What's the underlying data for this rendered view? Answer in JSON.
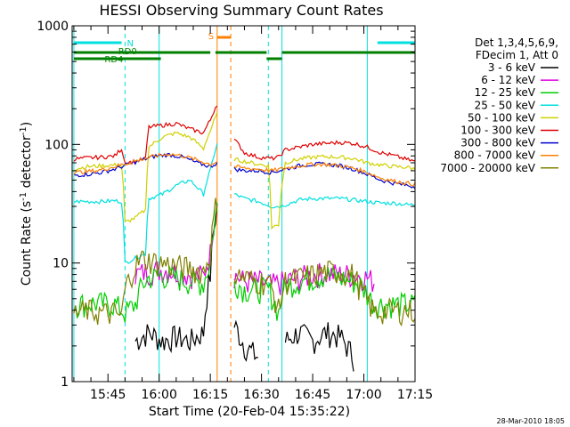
{
  "chart_data": {
    "type": "line",
    "title": "HESSI Observing Summary Count Rates",
    "xlabel": "Start Time (20-Feb-04 15:35:22)",
    "ylabel_main": "Count Rate (s",
    "ylabel_sup1": "-1",
    "ylabel_mid": " detector",
    "ylabel_sup2": "-1",
    "ylabel_end": ")",
    "y_scale": "log",
    "ylim": [
      1,
      1000
    ],
    "xlim_minutes": [
      -0.5,
      100
    ],
    "x_ticks": [
      {
        "label": "15:45",
        "t": 10
      },
      {
        "label": "16:00",
        "t": 25
      },
      {
        "label": "16:15",
        "t": 40
      },
      {
        "label": "16:30",
        "t": 55
      },
      {
        "label": "16:45",
        "t": 70
      },
      {
        "label": "17:00",
        "t": 85
      },
      {
        "label": "17:15",
        "t": 100
      }
    ],
    "y_ticks": [
      {
        "label": "1",
        "v": 1
      },
      {
        "label": "10",
        "v": 10
      },
      {
        "label": "100",
        "v": 100
      },
      {
        "label": "1000",
        "v": 1000
      }
    ],
    "legend": {
      "header": [
        "Det 1,3,4,5,6,9,",
        "FDecim 1, Att 0"
      ],
      "placement": "right"
    },
    "series": [
      {
        "name": "3 - 6 keV",
        "color": "#000000",
        "t": [
          0,
          4,
          8,
          14,
          18,
          22,
          26,
          30,
          34,
          38,
          40,
          42,
          44,
          45.5,
          47,
          50,
          54,
          58,
          62,
          66,
          70,
          74,
          78,
          82,
          86,
          90,
          94,
          98,
          100
        ],
        "y": [
          null,
          null,
          null,
          null,
          2.2,
          2.6,
          2.2,
          2.4,
          2.2,
          2.6,
          8,
          30,
          null,
          null,
          3,
          2,
          1.6,
          null,
          2.2,
          2.6,
          2.2,
          2.6,
          2.4,
          1.6,
          null,
          null,
          null,
          null,
          null
        ]
      },
      {
        "name": "6 - 12 keV",
        "color": "#e000e0",
        "t": [
          18,
          22,
          26,
          30,
          34,
          38,
          40,
          42,
          44,
          45.5,
          47,
          50,
          54,
          58,
          62,
          66,
          70,
          74,
          78,
          82,
          86,
          88
        ],
        "y": [
          8.0,
          8.5,
          8.8,
          8.5,
          8.0,
          7.8,
          12,
          35,
          null,
          null,
          8,
          7.0,
          7.0,
          6.5,
          7.0,
          7.5,
          8,
          8.2,
          8.0,
          8.0,
          7.5,
          7.0
        ]
      },
      {
        "name": "12 - 25 keV",
        "color": "#00d000",
        "t": [
          0,
          6,
          12,
          15,
          18,
          20,
          22,
          26,
          30,
          34,
          38,
          40,
          42,
          44,
          45.5,
          47,
          50,
          54,
          57,
          60,
          62,
          66,
          70,
          74,
          78,
          82,
          84,
          88,
          92,
          96,
          100
        ],
        "y": [
          4.5,
          4.6,
          4.5,
          3.8,
          4.5,
          6.5,
          7.5,
          7.8,
          7.5,
          7.0,
          6.8,
          10,
          30,
          null,
          null,
          7,
          6.0,
          6.0,
          6.0,
          3.8,
          6.5,
          7.0,
          7.5,
          8.0,
          7.5,
          7.0,
          6.5,
          4.5,
          4.5,
          4.5,
          4.5
        ]
      },
      {
        "name": "25 - 50 keV",
        "color": "#00e0e0",
        "t": [
          0,
          4,
          8,
          12,
          14,
          15,
          18,
          21,
          22,
          26,
          30,
          34,
          38,
          40,
          42,
          44,
          45.5,
          47,
          50,
          54,
          58,
          60,
          62,
          66,
          70,
          74,
          78,
          82,
          86,
          90,
          94,
          98,
          100
        ],
        "y": [
          33,
          33,
          33,
          33.5,
          33,
          10,
          11,
          12,
          35,
          38,
          45,
          50,
          38,
          60,
          100,
          null,
          null,
          38,
          35,
          33,
          30,
          30,
          31,
          34,
          35,
          35,
          35,
          34,
          33,
          32,
          32,
          31,
          31
        ]
      },
      {
        "name": "50 - 100 keV",
        "color": "#d0d000",
        "t": [
          0,
          4,
          8,
          12,
          14,
          15,
          18,
          21,
          22,
          26,
          30,
          34,
          38,
          40,
          42,
          44,
          45.5,
          47,
          50,
          54,
          57,
          58,
          60,
          62,
          66,
          70,
          74,
          78,
          82,
          86,
          90,
          94,
          98,
          100
        ],
        "y": [
          62,
          65,
          66,
          67,
          66,
          22,
          24,
          28,
          95,
          115,
          125,
          115,
          92,
          130,
          180,
          null,
          null,
          75,
          72,
          68,
          66,
          20,
          21,
          70,
          75,
          78,
          79,
          78,
          76,
          70,
          67,
          65,
          64,
          62
        ]
      },
      {
        "name": "100 - 300 keV",
        "color": "#e00000",
        "t": [
          0,
          4,
          8,
          12,
          14,
          15,
          18,
          21,
          22,
          26,
          30,
          34,
          38,
          40,
          42,
          44,
          45.5,
          47,
          50,
          54,
          58,
          60,
          62,
          66,
          70,
          74,
          78,
          82,
          86,
          90,
          94,
          98,
          100
        ],
        "y": [
          75,
          77,
          78,
          80,
          92,
          70,
          72,
          76,
          140,
          145,
          150,
          135,
          125,
          160,
          220,
          null,
          null,
          110,
          85,
          78,
          76,
          78,
          90,
          95,
          100,
          102,
          104,
          102,
          95,
          85,
          80,
          74,
          72
        ]
      },
      {
        "name": "300 - 800 keV",
        "color": "#0000d0",
        "t": [
          0,
          4,
          8,
          12,
          16,
          20,
          24,
          28,
          32,
          36,
          40,
          42,
          44,
          45.5,
          47,
          50,
          54,
          58,
          62,
          66,
          70,
          74,
          78,
          82,
          86,
          90,
          94,
          98,
          100
        ],
        "y": [
          55,
          56,
          58,
          62,
          68,
          74,
          80,
          82,
          78,
          70,
          65,
          70,
          null,
          null,
          62,
          60,
          60,
          58,
          62,
          66,
          68,
          68,
          66,
          62,
          56,
          50,
          47,
          45,
          44
        ]
      },
      {
        "name": "800 - 7000 keV",
        "color": "#ff8000",
        "t": [
          0,
          4,
          8,
          12,
          16,
          20,
          24,
          28,
          32,
          36,
          40,
          42,
          44,
          45.5,
          47,
          50,
          54,
          58,
          62,
          66,
          70,
          74,
          78,
          82,
          86,
          90,
          94,
          98,
          100
        ],
        "y": [
          58,
          59,
          61,
          65,
          70,
          75,
          80,
          83,
          80,
          74,
          68,
          72,
          null,
          null,
          65,
          63,
          62,
          60,
          63,
          66,
          68,
          68,
          66,
          63,
          58,
          52,
          49,
          47,
          46
        ]
      },
      {
        "name": "7000 - 20000 keV",
        "color": "#808000",
        "t": [
          0,
          4,
          8,
          12,
          14,
          15,
          18,
          20,
          22,
          26,
          30,
          34,
          38,
          40,
          42,
          44,
          45.5,
          47,
          50,
          54,
          57,
          60,
          62,
          66,
          70,
          74,
          78,
          82,
          84,
          88,
          92,
          96,
          100
        ],
        "y": [
          3.8,
          4.0,
          3.8,
          3.8,
          3.5,
          6.0,
          9.5,
          11,
          10.5,
          10.0,
          9.5,
          9.0,
          8.5,
          12,
          35,
          null,
          null,
          8,
          7.5,
          7.0,
          7.0,
          4.0,
          7.0,
          7.5,
          8.0,
          8.5,
          8.5,
          8.0,
          6.0,
          3.8,
          4.0,
          4.0,
          4.0
        ]
      }
    ],
    "state_bars": [
      {
        "label": "N",
        "color": "#00e0e0",
        "segments": [
          [
            0,
            14
          ],
          [
            89,
            100
          ]
        ],
        "level": 1
      },
      {
        "label": "RD0",
        "color": "#008000",
        "segments": [
          [
            0,
            40
          ],
          [
            41.5,
            56.5
          ],
          [
            61,
            100
          ]
        ],
        "level": 2
      },
      {
        "label": "RD4",
        "color": "#008000",
        "segments": [
          [
            0,
            25.5
          ]
        ],
        "level": 3
      },
      {
        "label": "S",
        "color": "#ff8000",
        "segments": [
          [
            42,
            46
          ]
        ],
        "level": 0
      },
      {
        "label": "",
        "color": "#008000",
        "segments": [
          [
            56.5,
            61
          ]
        ],
        "level": 3
      }
    ],
    "vlines": [
      {
        "t": 0,
        "color": "#00e0e0",
        "style": "solid"
      },
      {
        "t": 15,
        "color": "#00e0e0",
        "style": "dashed"
      },
      {
        "t": 25,
        "color": "#00e0e0",
        "style": "solid"
      },
      {
        "t": 57,
        "color": "#00e0e0",
        "style": "dashed"
      },
      {
        "t": 61,
        "color": "#00e0e0",
        "style": "solid"
      },
      {
        "t": 86,
        "color": "#00e0e0",
        "style": "solid"
      },
      {
        "t": 100,
        "color": "#00e0e0",
        "style": "dashed"
      },
      {
        "t": 42,
        "color": "#ff8000",
        "style": "solid"
      },
      {
        "t": 46,
        "color": "#ff8000",
        "style": "dashed"
      }
    ]
  },
  "footer_timestamp": "28-Mar-2010 18:05"
}
